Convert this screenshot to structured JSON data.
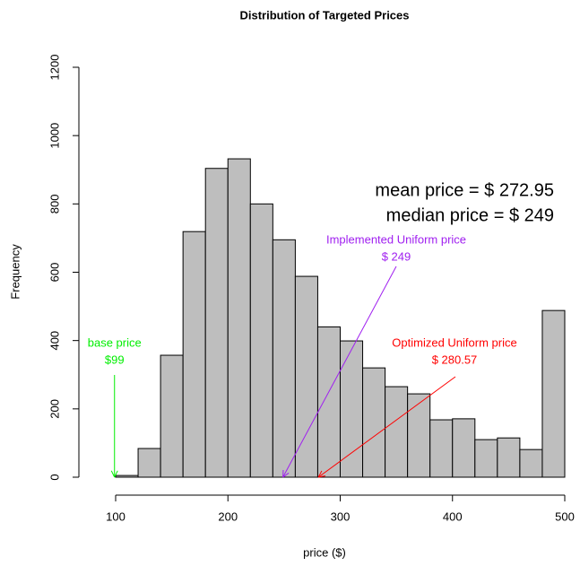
{
  "chart_data": {
    "type": "histogram",
    "title": "Distribution of Targeted Prices",
    "xlabel": "price ($)",
    "ylabel": "Frequency",
    "bins": [
      100,
      120,
      140,
      160,
      180,
      200,
      220,
      240,
      260,
      280,
      300,
      320,
      340,
      360,
      380,
      400,
      420,
      440,
      460,
      480,
      500
    ],
    "values": [
      5,
      84,
      357,
      719,
      904,
      932,
      800,
      695,
      588,
      440,
      399,
      320,
      265,
      244,
      168,
      171,
      110,
      115,
      81,
      488
    ],
    "color": "#bebebe",
    "xlim": [
      100,
      500
    ],
    "xticks": [
      100,
      200,
      300,
      400,
      500
    ],
    "ylim": [
      0,
      1200
    ],
    "yticks": [
      0,
      200,
      400,
      600,
      800,
      1000,
      1200
    ],
    "stats": [
      "mean price = $ 272.95",
      "median price = $ 249"
    ],
    "annotations": [
      {
        "label": "base price",
        "x": 99,
        "value_label": "$99",
        "color": "#00ee00"
      },
      {
        "label": "Implemented Uniform price",
        "x": 249,
        "value_label": "$ 249",
        "color": "#a020f0"
      },
      {
        "label": "Optimized Uniform price",
        "x": 280.57,
        "value_label": "$ 280.57",
        "color": "#ff0000"
      }
    ]
  }
}
